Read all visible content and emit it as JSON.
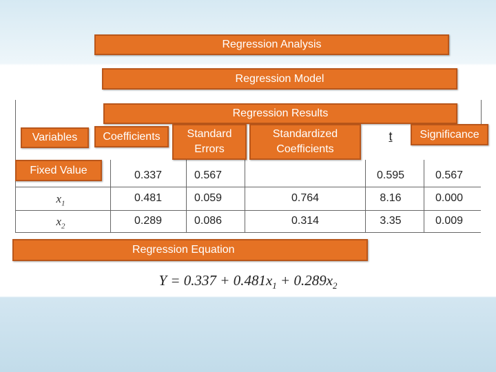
{
  "title": "Regression Analysis",
  "model": "Regression Model",
  "table": {
    "caption": "Regression Results",
    "header": [
      "Variables",
      "Coefficients",
      "Standard Errors",
      "Standardized Coefficients",
      "t",
      "Significance"
    ],
    "rows": [
      {
        "label": "Fixed Value",
        "cells": [
          "0.337",
          "0.567",
          null,
          "0.595",
          "0.567"
        ]
      },
      {
        "variable": "x",
        "subscript": "1",
        "cells": [
          "0.481",
          "0.059",
          "0.764",
          "8.16",
          "0.000"
        ]
      },
      {
        "variable": "x",
        "subscript": "2",
        "cells": [
          "0.289",
          "0.086",
          "0.314",
          "3.35",
          "0.009"
        ]
      }
    ]
  },
  "equation": {
    "caption": "Regression Equation",
    "parts": [
      {
        "text": "Y = 0.337 + 0.481x"
      },
      {
        "sub": "1"
      },
      {
        "text": " + 0.289x"
      },
      {
        "sub": "2"
      }
    ]
  }
}
